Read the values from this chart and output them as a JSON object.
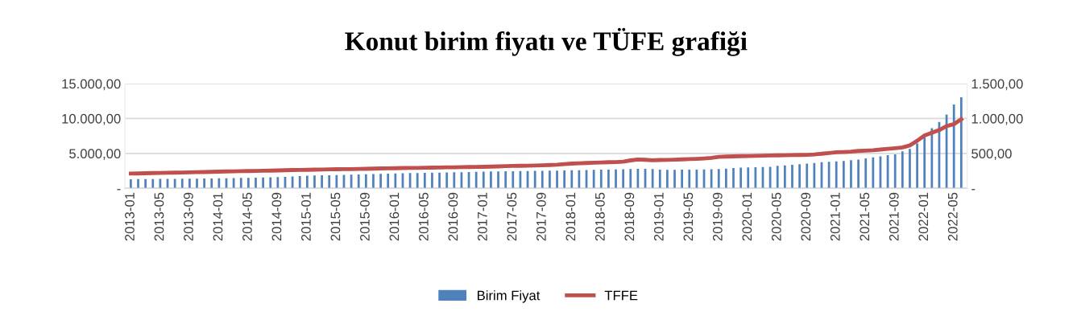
{
  "chart_data": {
    "type": "bar",
    "title": "Konut birim fiyatı ve TÜFE grafiği",
    "categories": [
      "2013-01",
      null,
      null,
      null,
      "2013-05",
      null,
      null,
      null,
      "2013-09",
      null,
      null,
      null,
      "2014-01",
      null,
      null,
      null,
      "2014-05",
      null,
      null,
      null,
      "2014-09",
      null,
      null,
      null,
      "2015-01",
      null,
      null,
      null,
      "2015-05",
      null,
      null,
      null,
      "2015-09",
      null,
      null,
      null,
      "2016-01",
      null,
      null,
      null,
      "2016-05",
      null,
      null,
      null,
      "2016-09",
      null,
      null,
      null,
      "2017-01",
      null,
      null,
      null,
      "2017-05",
      null,
      null,
      null,
      "2017-09",
      null,
      null,
      null,
      "2018-01",
      null,
      null,
      null,
      "2018-05",
      null,
      null,
      null,
      "2018-09",
      null,
      null,
      null,
      "2019-01",
      null,
      null,
      null,
      "2019-05",
      null,
      null,
      null,
      "2019-09",
      null,
      null,
      null,
      "2020-01",
      null,
      null,
      null,
      "2020-05",
      null,
      null,
      null,
      "2020-09",
      null,
      null,
      null,
      "2021-01",
      null,
      null,
      null,
      "2021-05",
      null,
      null,
      null,
      "2021-09",
      null,
      null,
      null,
      "2022-01",
      null,
      null,
      null,
      "2022-05",
      null
    ],
    "series": [
      {
        "name": "Birim Fiyat",
        "color": "#4f81bd",
        "values": [
          1300,
          1310,
          1320,
          1330,
          1340,
          1350,
          1360,
          1370,
          1380,
          1390,
          1400,
          1410,
          1420,
          1440,
          1460,
          1480,
          1500,
          1520,
          1550,
          1580,
          1610,
          1650,
          1690,
          1750,
          1820,
          1840,
          1860,
          1880,
          1900,
          1930,
          1960,
          1990,
          2010,
          2040,
          2070,
          2100,
          2130,
          2150,
          2170,
          2190,
          2210,
          2230,
          2250,
          2270,
          2290,
          2310,
          2330,
          2360,
          2380,
          2400,
          2410,
          2430,
          2440,
          2460,
          2470,
          2490,
          2500,
          2520,
          2540,
          2560,
          2580,
          2600,
          2620,
          2640,
          2660,
          2680,
          2710,
          2740,
          2770,
          2800,
          2790,
          2750,
          2680,
          2640,
          2650,
          2660,
          2670,
          2680,
          2700,
          2720,
          2770,
          2830,
          2900,
          2970,
          2990,
          3010,
          3040,
          3080,
          3230,
          3270,
          3350,
          3460,
          3540,
          3620,
          3730,
          3810,
          3860,
          3920,
          4040,
          4120,
          4300,
          4420,
          4570,
          4750,
          4850,
          5290,
          5650,
          6420,
          7380,
          8620,
          9500,
          10580,
          12000,
          13040
        ]
      },
      {
        "name": "TFFE",
        "type": "line",
        "axis": "y2",
        "color": "#c0504d",
        "values": [
          211,
          213,
          215,
          218,
          220,
          222,
          224,
          226,
          229,
          231,
          233,
          236,
          239,
          241,
          243,
          245,
          247,
          249,
          251,
          253,
          256,
          259,
          261,
          263,
          265,
          267,
          269,
          271,
          273,
          274,
          275,
          277,
          279,
          282,
          284,
          286,
          288,
          290,
          291,
          292,
          294,
          296,
          298,
          300,
          301,
          303,
          305,
          306,
          308,
          311,
          314,
          317,
          320,
          322,
          324,
          327,
          330,
          334,
          338,
          346,
          354,
          358,
          362,
          366,
          370,
          374,
          376,
          381,
          400,
          412,
          408,
          402,
          405,
          407,
          410,
          414,
          418,
          422,
          428,
          435,
          450,
          454,
          457,
          460,
          462,
          465,
          468,
          470,
          472,
          474,
          476,
          477,
          479,
          485,
          495,
          505,
          516,
          520,
          526,
          535,
          540,
          546,
          555,
          565,
          575,
          585,
          615,
          681,
          758,
          796,
          834,
          892,
          920,
          989
        ]
      }
    ],
    "ylim": [
      0,
      15000
    ],
    "yticks": [
      {
        "value": 0,
        "label": "-"
      },
      {
        "value": 5000,
        "label": "5.000,00"
      },
      {
        "value": 10000,
        "label": "10.000,00"
      },
      {
        "value": 15000,
        "label": "15.000,00"
      }
    ],
    "y2lim": [
      0,
      1500
    ],
    "y2ticks": [
      {
        "value": 0,
        "label": "-"
      },
      {
        "value": 500,
        "label": "500,00"
      },
      {
        "value": 1000,
        "label": "1.000,00"
      },
      {
        "value": 1500,
        "label": "1.500,00"
      }
    ],
    "grid": "y",
    "legend": "bottom",
    "marker": "none",
    "line_style": "solid"
  }
}
